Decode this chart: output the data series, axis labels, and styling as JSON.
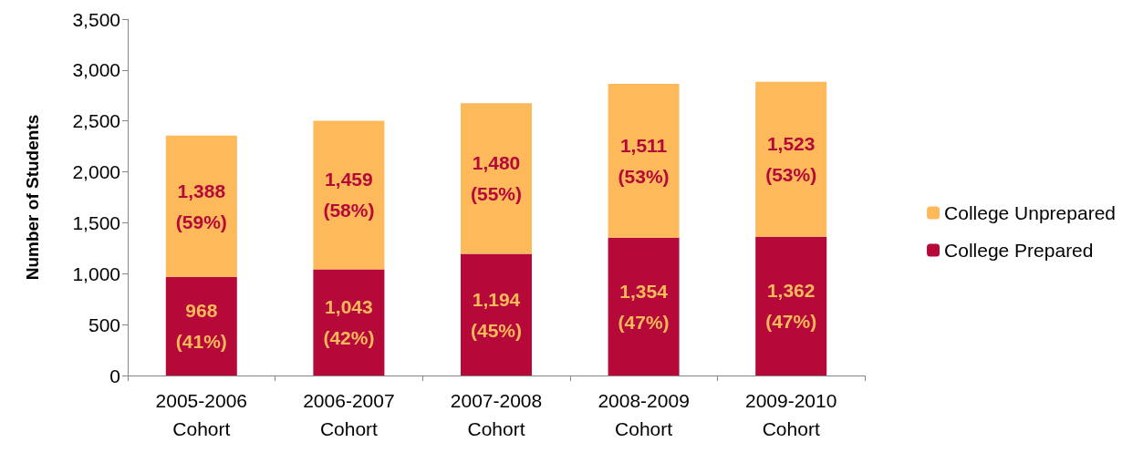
{
  "chart_data": {
    "type": "bar",
    "stacked": true,
    "ylabel": "Number of Students",
    "categories": [
      "2005-2006\nCohort",
      "2006-2007\nCohort",
      "2007-2008\nCohort",
      "2008-2009\nCohort",
      "2009-2010\nCohort"
    ],
    "series": [
      {
        "name": "College Prepared",
        "color": "#b5093a",
        "values": [
          968,
          1043,
          1194,
          1354,
          1362
        ],
        "value_labels": [
          "968\n(41%)",
          "1,043\n(42%)",
          "1,194\n(45%)",
          "1,354\n(47%)",
          "1,362\n(47%)"
        ]
      },
      {
        "name": "College Unprepared",
        "color": "#fdb95a",
        "values": [
          1388,
          1459,
          1480,
          1511,
          1523
        ],
        "value_labels": [
          "1,388\n(59%)",
          "1,459\n(58%)",
          "1,480\n(55%)",
          "1,511\n(53%)",
          "1,523\n(53%)"
        ]
      }
    ],
    "ylim": [
      0,
      3500
    ],
    "yticks": [
      0,
      500,
      {
        "value": 1000,
        "label": "1,000"
      },
      {
        "value": 1500,
        "label": "1,500"
      },
      {
        "value": 2000,
        "label": "2,000"
      },
      {
        "value": 2500,
        "label": "2,500"
      },
      {
        "value": 3000,
        "label": "3,000"
      },
      {
        "value": 3500,
        "label": "3,500"
      }
    ],
    "grid": false,
    "legend": "right"
  }
}
